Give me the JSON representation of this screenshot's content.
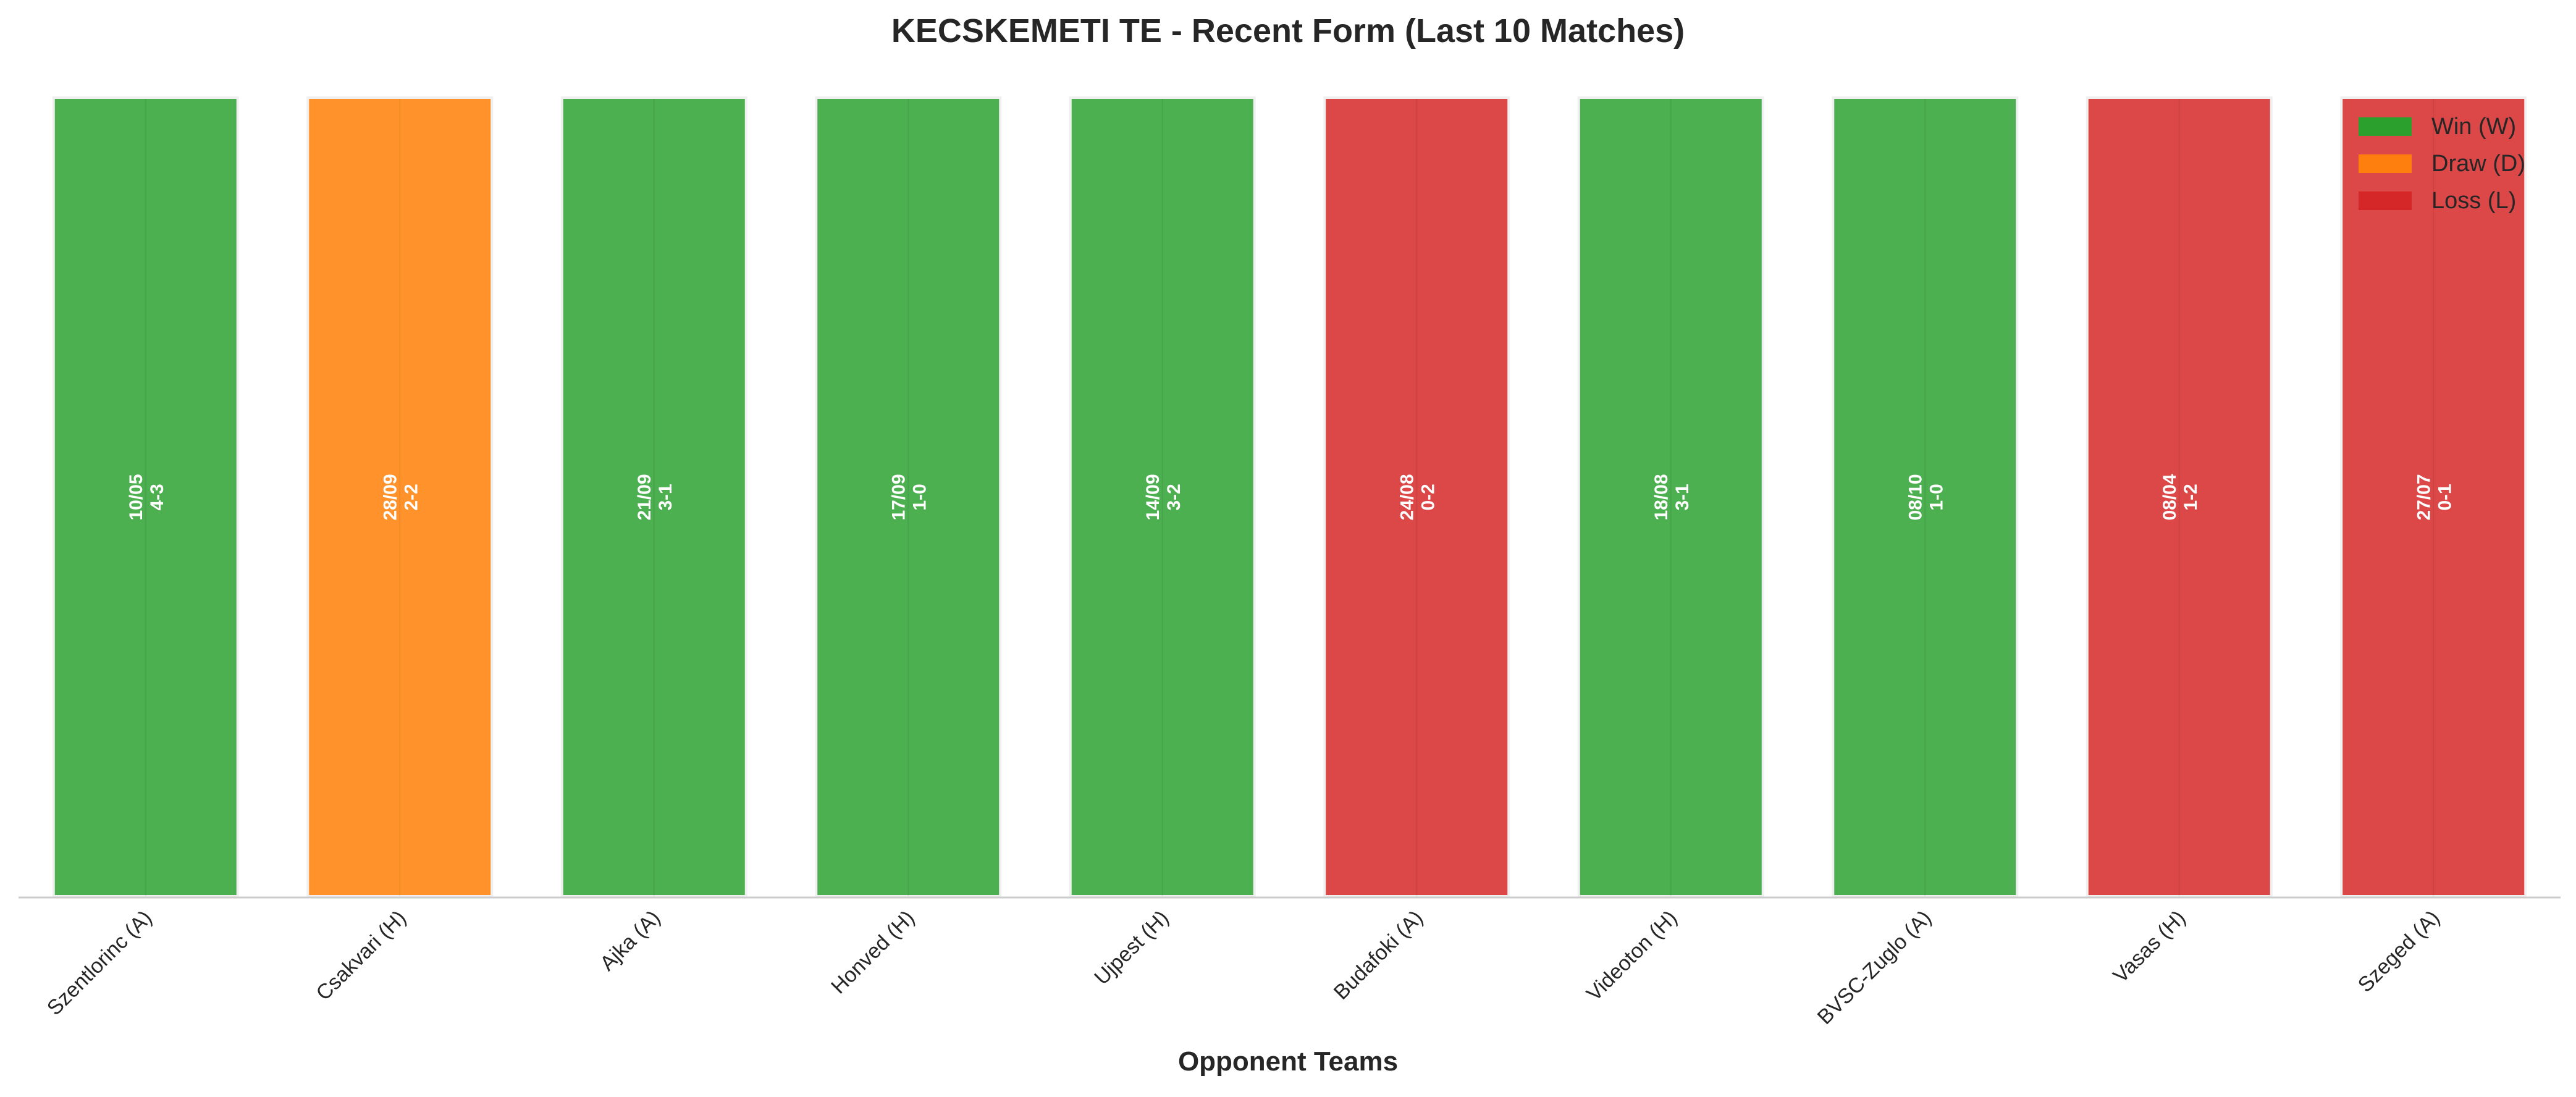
{
  "chart_data": {
    "type": "bar",
    "title": "KECSKEMETI TE - Recent Form (Last 10 Matches)",
    "xlabel": "Opponent Teams",
    "ylabel": "",
    "grid": false,
    "legend_position": "top-right",
    "categories": [
      "Szentlorinc (A)",
      "Csakvari (H)",
      "Ajka (A)",
      "Honved (H)",
      "Ujpest (H)",
      "Budafoki (A)",
      "Videoton (H)",
      "BVSC-Zuglo (A)",
      "Vasas (H)",
      "Szeged (A)"
    ],
    "values": [
      1,
      1,
      1,
      1,
      1,
      1,
      1,
      1,
      1,
      1
    ],
    "results": [
      "W",
      "D",
      "W",
      "W",
      "W",
      "L",
      "W",
      "W",
      "L",
      "L"
    ],
    "dates": [
      "10/05",
      "28/09",
      "21/09",
      "17/09",
      "14/09",
      "24/08",
      "18/08",
      "08/10",
      "08/04",
      "27/07"
    ],
    "scores": [
      "4-3",
      "2-2",
      "3-1",
      "1-0",
      "3-2",
      "0-2",
      "3-1",
      "1-0",
      "1-2",
      "0-1"
    ],
    "legend": [
      {
        "key": "W",
        "label": "Win (W)",
        "color": "#2ca02c"
      },
      {
        "key": "D",
        "label": "Draw (D)",
        "color": "#ff7f0e"
      },
      {
        "key": "L",
        "label": "Loss (L)",
        "color": "#d62728"
      }
    ],
    "colors": {
      "W": "#4caf50",
      "D": "#ff922b",
      "L": "#dc4747"
    }
  }
}
